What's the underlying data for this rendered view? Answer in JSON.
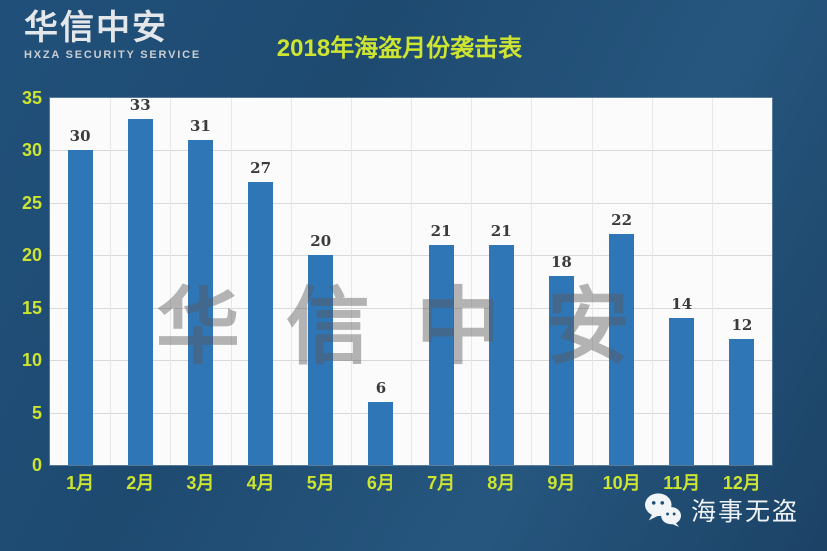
{
  "header": {
    "logo_title": "华信中安",
    "logo_subtitle": "HXZA SECURITY SERVICE"
  },
  "chart_data": {
    "type": "bar",
    "title": "2018年海盗月份袭击表",
    "categories": [
      "1月",
      "2月",
      "3月",
      "4月",
      "5月",
      "6月",
      "7月",
      "8月",
      "9月",
      "10月",
      "11月",
      "12月"
    ],
    "values": [
      30,
      33,
      31,
      27,
      20,
      6,
      21,
      21,
      18,
      22,
      14,
      12
    ],
    "xlabel": "",
    "ylabel": "",
    "ylim": [
      0,
      35
    ],
    "yticks": [
      0,
      5,
      10,
      15,
      20,
      25,
      30,
      35
    ],
    "grid": true,
    "legend": "none",
    "value_labels_shown": true,
    "colors": {
      "bar": "#2E76B6",
      "axis_labels": "#CDE431",
      "value_labels": "#3B3B3B",
      "plot_background": "#FBFBFB",
      "gridline": "#D9D9D9",
      "page_background": "#1F4C73"
    }
  },
  "watermark": {
    "text": "华信中安"
  },
  "footer": {
    "icon": "wechat-icon",
    "account_name": "海事无盗"
  }
}
